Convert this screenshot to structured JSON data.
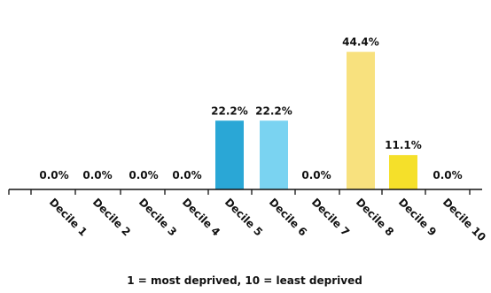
{
  "chart_data": {
    "type": "bar",
    "categories": [
      "Decile 1",
      "Decile 2",
      "Decile 3",
      "Decile 4",
      "Decile 5",
      "Decile 6",
      "Decile 7",
      "Decile 8",
      "Decile 9",
      "Decile 10"
    ],
    "values": [
      0.0,
      0.0,
      0.0,
      0.0,
      22.2,
      22.2,
      0.0,
      44.4,
      11.1,
      0.0
    ],
    "data_labels": [
      "0.0%",
      "0.0%",
      "0.0%",
      "0.0%",
      "22.2%",
      "22.2%",
      "0.0%",
      "44.4%",
      "11.1%",
      "0.0%"
    ],
    "bar_colors": [
      "#2aa7d6",
      "#2aa7d6",
      "#2aa7d6",
      "#2aa7d6",
      "#2aa7d6",
      "#7ad3f1",
      "#f8e17e",
      "#f8e17e",
      "#f5e02a",
      "#f5e02a"
    ],
    "title": "",
    "xlabel": "1 = most deprived, 10 = least deprived",
    "ylabel": "",
    "ylim": [
      0,
      50
    ],
    "grid": false,
    "legend": "none"
  }
}
